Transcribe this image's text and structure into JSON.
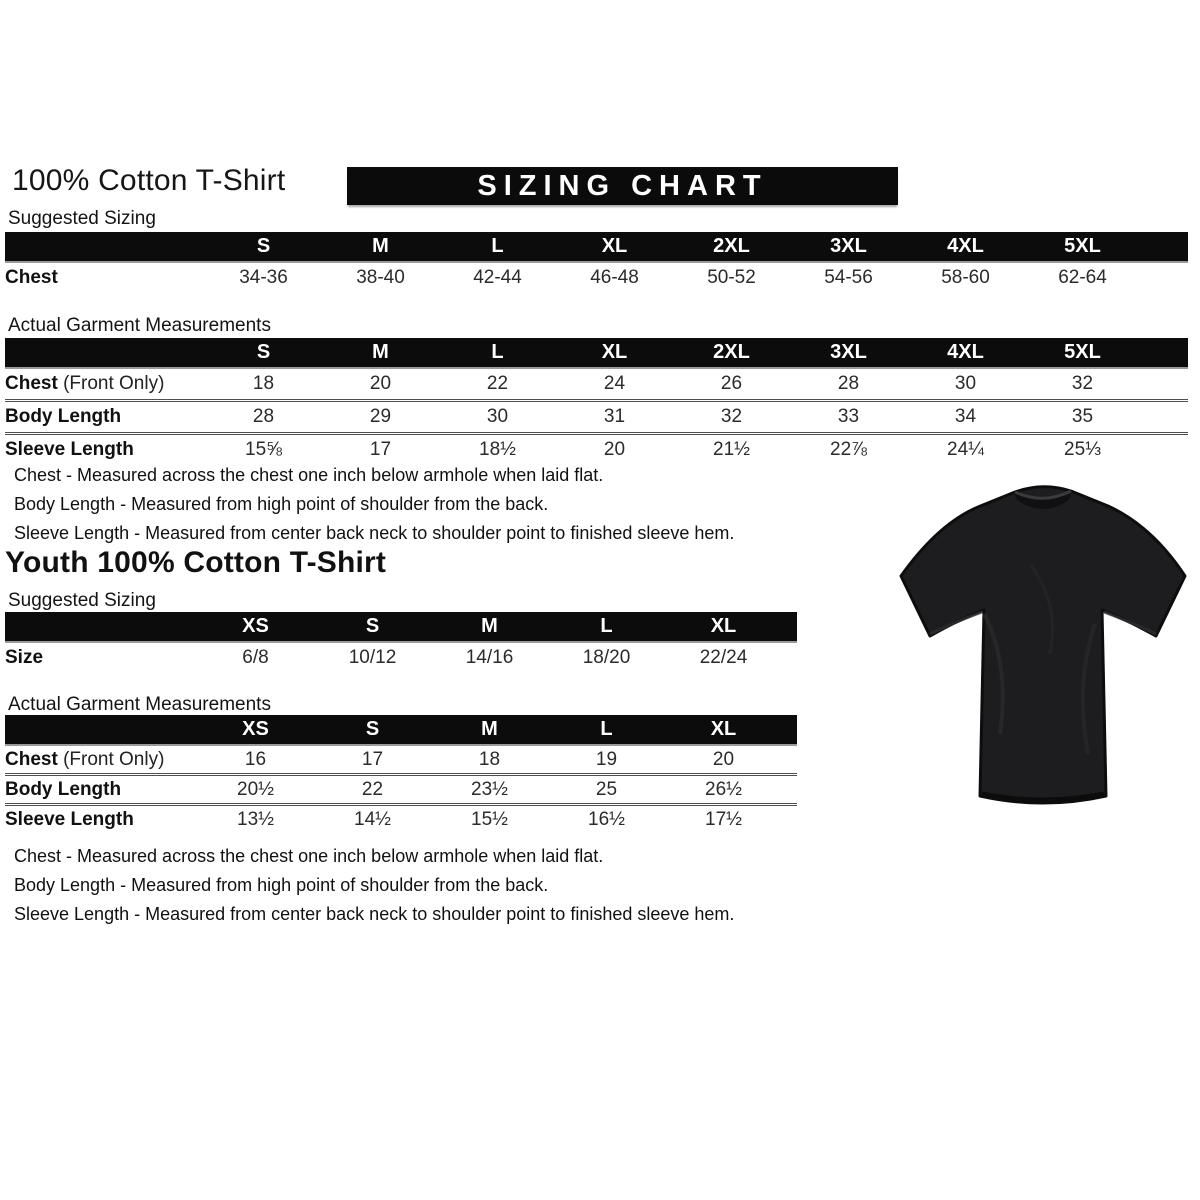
{
  "page": {
    "title": "100% Cotton T-Shirt",
    "banner": "SIZING CHART",
    "youth_title": "Youth 100% Cotton T-Shirt"
  },
  "labels": {
    "suggested": "Suggested Sizing",
    "actual": "Actual Garment Measurements"
  },
  "notes": [
    "Chest - Measured across the chest one inch below armhole when laid flat.",
    "Body Length - Measured from high point of shoulder from the back.",
    "Sleeve Length - Measured from center back neck to shoulder point to finished sleeve hem."
  ],
  "adult": {
    "suggested": {
      "headers": [
        "S",
        "M",
        "L",
        "XL",
        "2XL",
        "3XL",
        "4XL",
        "5XL"
      ],
      "rows": [
        {
          "label": "Chest",
          "suffix": "",
          "values": [
            "34-36",
            "38-40",
            "42-44",
            "46-48",
            "50-52",
            "54-56",
            "58-60",
            "62-64"
          ]
        }
      ]
    },
    "actual": {
      "headers": [
        "S",
        "M",
        "L",
        "XL",
        "2XL",
        "3XL",
        "4XL",
        "5XL"
      ],
      "rows": [
        {
          "label": "Chest",
          "suffix": " (Front Only)",
          "values": [
            "18",
            "20",
            "22",
            "24",
            "26",
            "28",
            "30",
            "32"
          ]
        },
        {
          "label": "Body Length",
          "suffix": "",
          "values": [
            "28",
            "29",
            "30",
            "31",
            "32",
            "33",
            "34",
            "35"
          ]
        },
        {
          "label": "Sleeve Length",
          "suffix": "",
          "values": [
            "15⅝",
            "17",
            "18½",
            "20",
            "21½",
            "22⅞",
            "24¼",
            "25⅓"
          ]
        }
      ]
    }
  },
  "youth": {
    "suggested": {
      "headers": [
        "XS",
        "S",
        "M",
        "L",
        "XL"
      ],
      "rows": [
        {
          "label": "Size",
          "suffix": "",
          "values": [
            "6/8",
            "10/12",
            "14/16",
            "18/20",
            "22/24"
          ]
        }
      ]
    },
    "actual": {
      "headers": [
        "XS",
        "S",
        "M",
        "L",
        "XL"
      ],
      "rows": [
        {
          "label": "Chest",
          "suffix": " (Front Only)",
          "values": [
            "16",
            "17",
            "18",
            "19",
            "20"
          ]
        },
        {
          "label": "Body Length",
          "suffix": "",
          "values": [
            "20½",
            "22",
            "23½",
            "25",
            "26½"
          ]
        },
        {
          "label": "Sleeve Length",
          "suffix": "",
          "values": [
            "13½",
            "14½",
            "15½",
            "16½",
            "17½"
          ]
        }
      ]
    }
  },
  "image": {
    "tshirt_name": "black-t-shirt-photo",
    "tshirt_color": "#1d1d1f"
  },
  "colors": {
    "banner_bg": "#0b0b0b",
    "table_header_bg": "#0c0c0c",
    "text": "#1a1a1a"
  }
}
